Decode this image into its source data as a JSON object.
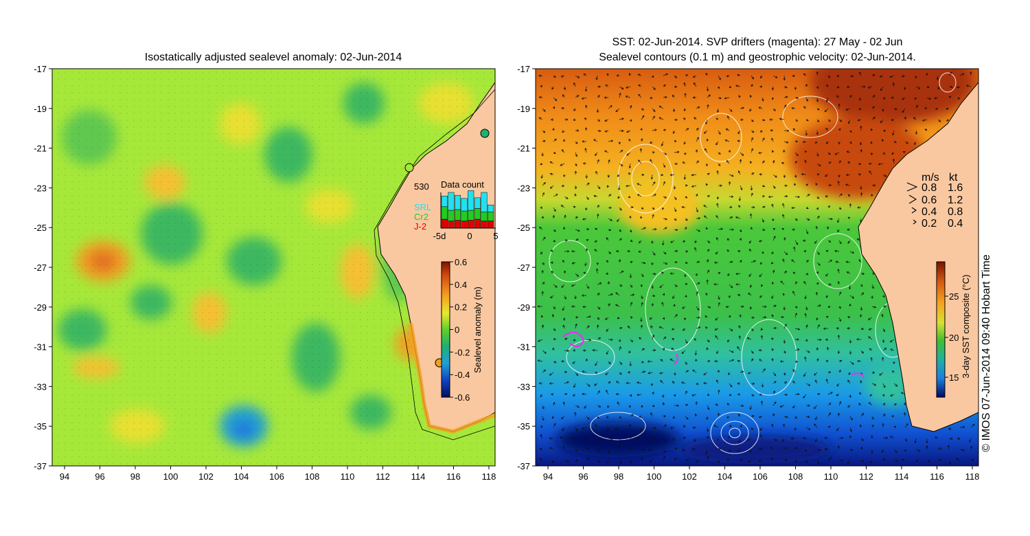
{
  "left_panel": {
    "title": "Isostatically adjusted sealevel anomaly: 02-Jun-2014",
    "x_ticks": [
      "94",
      "96",
      "98",
      "100",
      "102",
      "104",
      "106",
      "108",
      "110",
      "112",
      "114",
      "116",
      "118"
    ],
    "y_ticks": [
      "-17",
      "-19",
      "-21",
      "-23",
      "-25",
      "-27",
      "-29",
      "-31",
      "-33",
      "-35",
      "-37"
    ],
    "colorbar": {
      "label": "Sealevel anomaly (m)",
      "ticks": [
        "0.6",
        "0.4",
        "0.2",
        "0",
        "-0.2",
        "-0.4",
        "-0.6"
      ]
    },
    "data_count": {
      "title": "Data count",
      "max_label": "530",
      "x_ticks": [
        "-5d",
        "0",
        "5"
      ],
      "legend": [
        {
          "label": "SRL",
          "color": "#22e0f0"
        },
        {
          "label": "Cr2",
          "color": "#22cc22"
        },
        {
          "label": "J-2",
          "color": "#e00000"
        }
      ],
      "bars": [
        {
          "srl": 0.3,
          "cr2": 0.35,
          "j2": 0.25
        },
        {
          "srl": 0.5,
          "cr2": 0.3,
          "j2": 0.2
        },
        {
          "srl": 0.4,
          "cr2": 0.3,
          "j2": 0.22
        },
        {
          "srl": 0.35,
          "cr2": 0.28,
          "j2": 0.2
        },
        {
          "srl": 0.55,
          "cr2": 0.28,
          "j2": 0.22
        },
        {
          "srl": 0.3,
          "cr2": 0.3,
          "j2": 0.25
        },
        {
          "srl": 0.55,
          "cr2": 0.25,
          "j2": 0.2
        },
        {
          "srl": 0.2,
          "cr2": 0.25,
          "j2": 0.2
        }
      ]
    }
  },
  "right_panel": {
    "title_line1": "SST: 02-Jun-2014. SVP drifters (magenta): 27 May - 02 Jun",
    "title_line2": "Sealevel contours (0.1 m) and geostrophic velocity: 02-Jun-2014.",
    "x_ticks": [
      "94",
      "96",
      "98",
      "100",
      "102",
      "104",
      "106",
      "108",
      "110",
      "112",
      "114",
      "116",
      "118"
    ],
    "y_ticks": [
      "-17",
      "-19",
      "-21",
      "-23",
      "-25",
      "-27",
      "-29",
      "-31",
      "-33",
      "-35",
      "-37"
    ],
    "colorbar": {
      "label": "3-day SST composite (°C)",
      "ticks": [
        "25",
        "20",
        "15"
      ]
    },
    "velocity_legend": {
      "header_ms": "m/s",
      "header_kt": "kt",
      "rows": [
        {
          "ms": "0.8",
          "kt": "1.6"
        },
        {
          "ms": "0.6",
          "kt": "1.2"
        },
        {
          "ms": "0.4",
          "kt": "0.8"
        },
        {
          "ms": "0.2",
          "kt": "0.4"
        }
      ]
    }
  },
  "credit": "© IMOS 07-Jun-2014 09:40 Hobart Time",
  "colors": {
    "land": "#f9c8a0",
    "sla_neutral": "#a6e83a",
    "coast": "#000000"
  }
}
